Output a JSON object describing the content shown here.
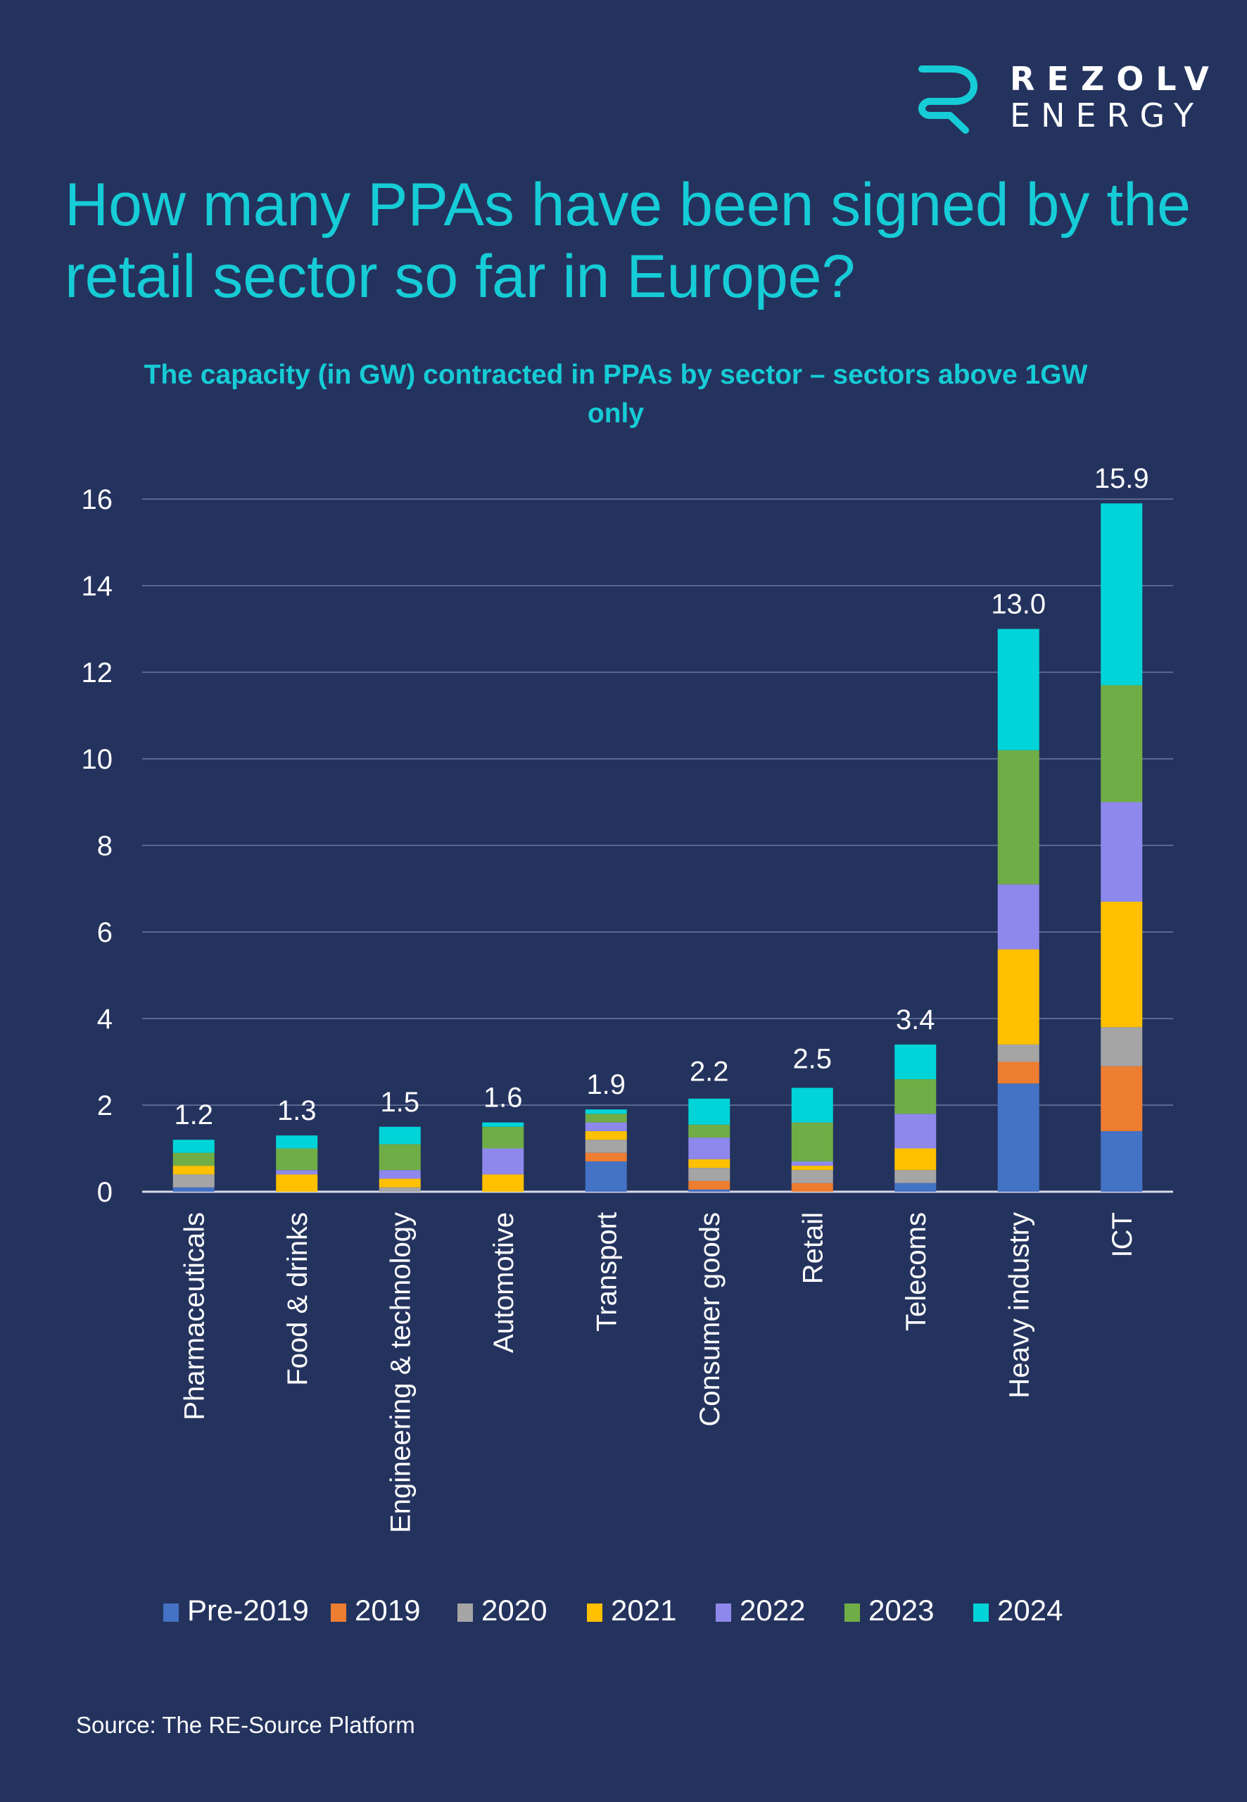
{
  "brand": {
    "name_line1": "REZOLV",
    "name_line2": "ENERGY",
    "logo_icon": "r-monogram-icon",
    "accent_color": "#16ccd6"
  },
  "header": {
    "title": "How many PPAs have been signed by the retail sector so far in Europe?"
  },
  "chart_data": {
    "type": "bar",
    "stacked": true,
    "title": "The capacity (in GW) contracted in PPAs by sector – sectors above 1GW only",
    "xlabel": "",
    "ylabel": "",
    "ylim": [
      0,
      16
    ],
    "yticks": [
      0,
      2,
      4,
      6,
      8,
      10,
      12,
      14,
      16
    ],
    "grid": true,
    "legend_position": "bottom",
    "categories": [
      "Pharmaceuticals",
      "Food & drinks",
      "Engineering & technology",
      "Automotive",
      "Transport",
      "Consumer goods",
      "Retail",
      "Telecoms",
      "Heavy industry",
      "ICT"
    ],
    "totals": [
      1.2,
      1.3,
      1.5,
      1.6,
      1.9,
      2.2,
      2.5,
      3.4,
      13.0,
      15.9
    ],
    "total_labels": [
      "1.2",
      "1.3",
      "1.5",
      "1.6",
      "1.9",
      "2.2",
      "2.5",
      "3.4",
      "13.0",
      "15.9"
    ],
    "series": [
      {
        "name": "Pre-2019",
        "color": "#4472c4",
        "values": [
          0.1,
          0.0,
          0.0,
          0.0,
          0.7,
          0.05,
          0.0,
          0.2,
          2.5,
          1.4
        ]
      },
      {
        "name": "2019",
        "color": "#ed7d31",
        "values": [
          0.0,
          0.0,
          0.0,
          0.0,
          0.2,
          0.2,
          0.2,
          0.0,
          0.5,
          1.5
        ]
      },
      {
        "name": "2020",
        "color": "#a5a5a5",
        "values": [
          0.3,
          0.0,
          0.1,
          0.0,
          0.3,
          0.3,
          0.3,
          0.3,
          0.4,
          0.9
        ]
      },
      {
        "name": "2021",
        "color": "#ffc000",
        "values": [
          0.2,
          0.4,
          0.2,
          0.4,
          0.2,
          0.2,
          0.1,
          0.5,
          2.2,
          2.9
        ]
      },
      {
        "name": "2022",
        "color": "#8e88ec",
        "values": [
          0.0,
          0.1,
          0.2,
          0.6,
          0.2,
          0.5,
          0.1,
          0.8,
          1.5,
          2.3
        ]
      },
      {
        "name": "2023",
        "color": "#70ad47",
        "values": [
          0.3,
          0.5,
          0.6,
          0.5,
          0.2,
          0.3,
          0.9,
          0.8,
          3.1,
          2.7
        ]
      },
      {
        "name": "2024",
        "color": "#00d4d8",
        "values": [
          0.3,
          0.3,
          0.4,
          0.1,
          0.1,
          0.6,
          0.8,
          0.8,
          2.8,
          4.2
        ]
      }
    ]
  },
  "footer": {
    "source": "Source: The RE-Source Platform"
  }
}
